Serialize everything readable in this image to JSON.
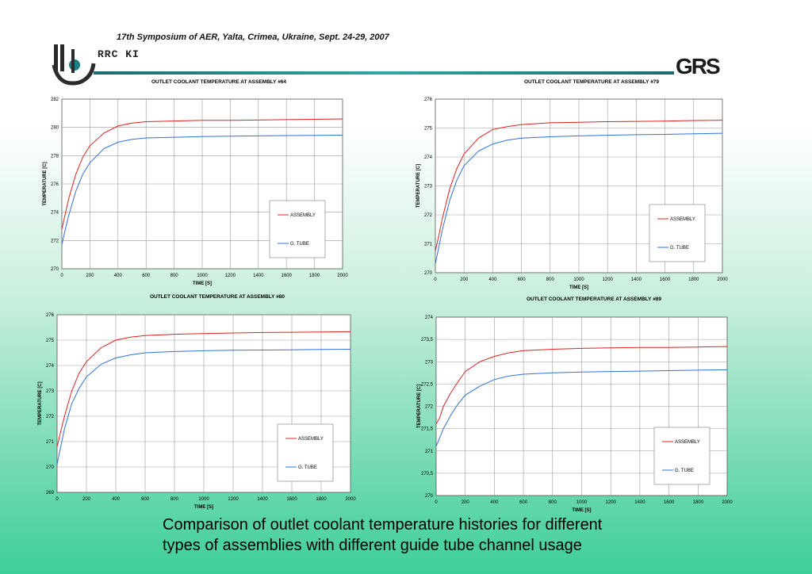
{
  "header": {
    "title": "17th Symposium of AER, Yalta, Crimea, Ukraine, Sept. 24-29, 2007",
    "left_logo_text": "RRC KI",
    "right_logo_text": "GRS"
  },
  "caption": {
    "line1": "Comparison of outlet coolant temperature histories for different",
    "line2": "types of assemblies with different guide tube channel usage"
  },
  "chart_data": [
    {
      "type": "line",
      "title": "OUTLET COOLANT TEMPERATURE AT ASSEMBLY #64",
      "xlabel": "TIME [S]",
      "ylabel": "TEMPERATURE [C]",
      "xlim": [
        0,
        2000
      ],
      "ylim": [
        270,
        282
      ],
      "xticks": [
        "0",
        "200",
        "400",
        "600",
        "800",
        "1000",
        "1200",
        "1400",
        "1600",
        "1800",
        "2000"
      ],
      "yticks": [
        "270",
        "272",
        "274",
        "276",
        "278",
        "280",
        "282"
      ],
      "grid": true,
      "legend_position": "lower-right",
      "x": [
        0,
        25,
        50,
        100,
        150,
        200,
        300,
        400,
        500,
        600,
        800,
        1000,
        1200,
        1400,
        1600,
        1800,
        2000
      ],
      "series": [
        {
          "name": "ASSEMBLY",
          "color": "#e02020",
          "values": [
            272.8,
            273.9,
            275.0,
            276.7,
            277.9,
            278.7,
            279.6,
            280.1,
            280.3,
            280.4,
            280.45,
            280.5,
            280.5,
            280.52,
            280.55,
            280.57,
            280.6
          ]
        },
        {
          "name": "G. TUBE",
          "color": "#2f6fe0",
          "values": [
            271.7,
            272.8,
            273.8,
            275.5,
            276.7,
            277.5,
            278.5,
            278.95,
            279.15,
            279.25,
            279.3,
            279.35,
            279.38,
            279.4,
            279.42,
            279.44,
            279.45
          ]
        }
      ]
    },
    {
      "type": "line",
      "title": "OUTLET COOLANT TEMPERATURE AT ASSEMBLY #79",
      "xlabel": "TIME [S]",
      "ylabel": "TEMPERATURE [C]",
      "xlim": [
        0,
        2000
      ],
      "ylim": [
        270,
        276
      ],
      "xticks": [
        "0",
        "200",
        "400",
        "600",
        "800",
        "1000",
        "1200",
        "1400",
        "1600",
        "1800",
        "2000"
      ],
      "yticks": [
        "270",
        "271",
        "272",
        "273",
        "274",
        "275",
        "276"
      ],
      "grid": true,
      "legend_position": "lower-right",
      "x": [
        0,
        25,
        50,
        100,
        150,
        200,
        300,
        400,
        500,
        600,
        800,
        1000,
        1200,
        1400,
        1600,
        1800,
        2000
      ],
      "series": [
        {
          "name": "ASSEMBLY",
          "color": "#e02020",
          "values": [
            270.75,
            271.3,
            271.9,
            272.9,
            273.6,
            274.1,
            274.65,
            274.95,
            275.05,
            275.12,
            275.18,
            275.2,
            275.22,
            275.23,
            275.24,
            275.26,
            275.27
          ]
        },
        {
          "name": "G. TUBE",
          "color": "#2f6fe0",
          "values": [
            270.3,
            270.9,
            271.5,
            272.5,
            273.2,
            273.7,
            274.2,
            274.45,
            274.58,
            274.65,
            274.7,
            274.73,
            274.75,
            274.77,
            274.78,
            274.8,
            274.82
          ]
        }
      ]
    },
    {
      "type": "line",
      "title": "OUTLET COOLANT TEMPERATURE AT ASSEMBLY #80",
      "xlabel": "TIME [S]",
      "ylabel": "TEMPERATURE [C]",
      "xlim": [
        0,
        2000
      ],
      "ylim": [
        269,
        276
      ],
      "xticks": [
        "0",
        "200",
        "400",
        "600",
        "800",
        "1000",
        "1200",
        "1400",
        "1600",
        "1800",
        "2000"
      ],
      "yticks": [
        "269",
        "270",
        "271",
        "272",
        "273",
        "274",
        "275",
        "276"
      ],
      "grid": true,
      "legend_position": "lower-right",
      "x": [
        0,
        25,
        50,
        100,
        150,
        200,
        300,
        400,
        500,
        600,
        800,
        1000,
        1200,
        1400,
        1600,
        1800,
        2000
      ],
      "series": [
        {
          "name": "ASSEMBLY",
          "color": "#e02020",
          "values": [
            270.8,
            271.4,
            272.0,
            273.0,
            273.7,
            274.15,
            274.7,
            275.0,
            275.12,
            275.18,
            275.23,
            275.26,
            275.28,
            275.3,
            275.31,
            275.32,
            275.33
          ]
        },
        {
          "name": "G. TUBE",
          "color": "#2f6fe0",
          "values": [
            270.1,
            270.8,
            271.5,
            272.5,
            273.1,
            273.55,
            274.05,
            274.3,
            274.42,
            274.5,
            274.55,
            274.58,
            274.6,
            274.61,
            274.62,
            274.63,
            274.64
          ]
        }
      ]
    },
    {
      "type": "line",
      "title": "OUTLET COOLANT TEMPERATURE AT ASSEMBLY #89",
      "xlabel": "TIME [S]",
      "ylabel": "TEMPERATURE [C]",
      "xlim": [
        0,
        2000
      ],
      "ylim": [
        270,
        274
      ],
      "xticks": [
        "0",
        "200",
        "400",
        "600",
        "800",
        "1000",
        "1200",
        "1400",
        "1600",
        "1800",
        "2000"
      ],
      "yticks": [
        "270",
        "270,5",
        "271",
        "271,5",
        "272",
        "272,5",
        "273",
        "273,5",
        "274"
      ],
      "grid": true,
      "legend_position": "lower-right",
      "x": [
        0,
        25,
        50,
        100,
        150,
        200,
        300,
        400,
        500,
        600,
        800,
        1000,
        1200,
        1400,
        1600,
        1800,
        2000
      ],
      "series": [
        {
          "name": "ASSEMBLY",
          "color": "#e02020",
          "values": [
            271.6,
            271.75,
            272.0,
            272.3,
            272.55,
            272.78,
            273.0,
            273.12,
            273.2,
            273.25,
            273.28,
            273.3,
            273.31,
            273.32,
            273.32,
            273.33,
            273.34
          ]
        },
        {
          "name": "G. TUBE",
          "color": "#2f6fe0",
          "values": [
            271.1,
            271.3,
            271.5,
            271.8,
            272.05,
            272.25,
            272.45,
            272.6,
            272.68,
            272.72,
            272.75,
            272.77,
            272.78,
            272.79,
            272.8,
            272.81,
            272.82
          ]
        }
      ]
    }
  ]
}
